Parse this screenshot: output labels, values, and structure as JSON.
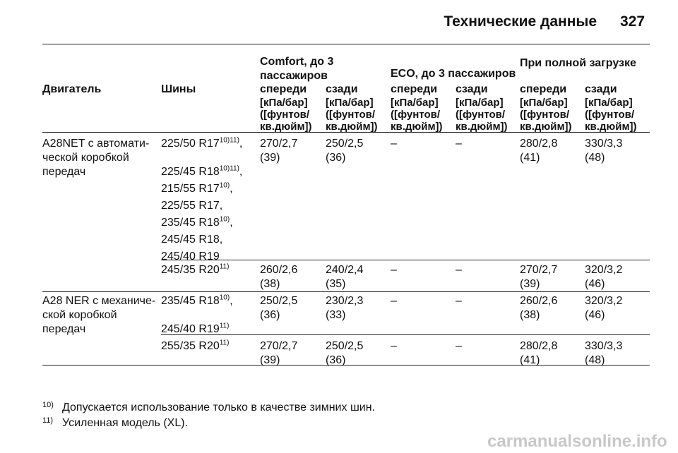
{
  "header": {
    "title": "Технические данные",
    "page": "327"
  },
  "table": {
    "groups": [
      "Comfort, до 3 пассажиров",
      "ECO, до 3 пассажиров",
      "При полной загрузке"
    ],
    "columns": [
      "Двигатель",
      "Шины",
      "спереди",
      "сзади",
      "спереди",
      "сзади",
      "спереди",
      "сзади"
    ],
    "unit": "[кПа/бар] ([фунтов/ кв.дюйм])",
    "rows": [
      {
        "engine": [
          "A28NET с автомати-",
          "ческой коробкой",
          "передач"
        ],
        "subrows": [
          {
            "tires": [
              {
                "size": "225/50 R17",
                "note": "10)11)",
                "sep": ","
              },
              {
                "size": "225/45 R18",
                "note": "10)11)",
                "sep": ","
              },
              {
                "size": "215/55 R17",
                "note": "10)",
                "sep": ","
              },
              {
                "size": "225/55 R17",
                "sep": ","
              },
              {
                "size": "235/45 R18",
                "note": "10)",
                "sep": ","
              },
              {
                "size": "245/45 R18",
                "sep": ","
              },
              {
                "size": "245/40 R19"
              }
            ],
            "values": [
              "270/2,7 (39)",
              "250/2,5 (36)",
              "–",
              "–",
              "280/2,8 (41)",
              "330/3,3 (48)"
            ]
          },
          {
            "tires": [
              {
                "size": "245/35 R20",
                "note": "11)"
              }
            ],
            "values": [
              "260/2,6 (38)",
              "240/2,4 (35)",
              "–",
              "–",
              "270/2,7 (39)",
              "320/3,2 (46)"
            ]
          }
        ]
      },
      {
        "engine": [
          "A28 NER с механиче-",
          "ской коробкой",
          "передач"
        ],
        "subrows": [
          {
            "tires": [
              {
                "size": "235/45 R18",
                "note": "10)",
                "sep": ","
              },
              {
                "size": "245/40 R19",
                "note": "11)"
              }
            ],
            "values": [
              "250/2,5 (36)",
              "230/2,3 (33)",
              "–",
              "–",
              "260/2,6 (38)",
              "320/3,2 (46)"
            ]
          },
          {
            "tires": [
              {
                "size": "255/35 R20",
                "note": "11)"
              }
            ],
            "values": [
              "270/2,7 (39)",
              "250/2,5 (36)",
              "–",
              "–",
              "280/2,8 (41)",
              "330/3,3 (48)"
            ]
          }
        ]
      }
    ]
  },
  "footnotes": [
    {
      "mark": "10)",
      "text": "Допускается использование только в качестве зимних шин."
    },
    {
      "mark": "11)",
      "text": "Усиленная модель (XL)."
    }
  ],
  "watermark": "carmanualsonline.info"
}
